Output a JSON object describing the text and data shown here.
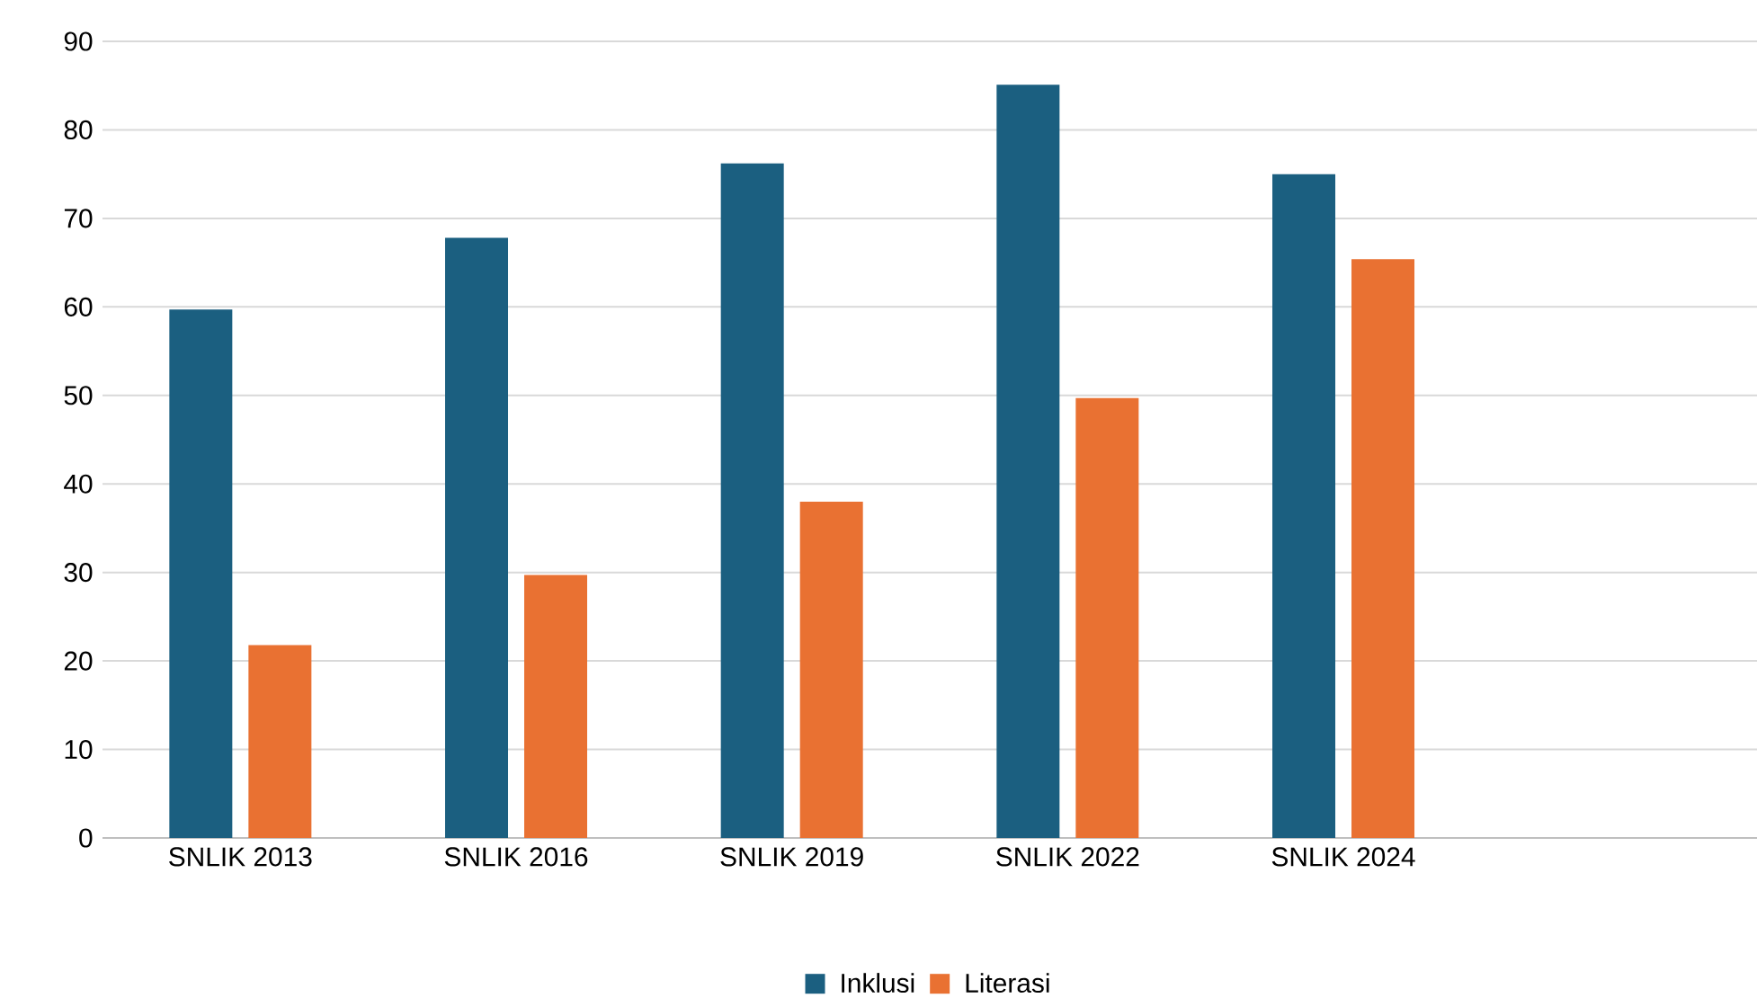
{
  "chart_data": {
    "type": "bar",
    "categories": [
      "SNLIK 2013",
      "SNLIK 2016",
      "SNLIK 2019",
      "SNLIK 2022",
      "SNLIK 2024",
      null
    ],
    "series": [
      {
        "name": "Inklusi",
        "color": "#1b5f80",
        "values": [
          59.7,
          67.8,
          76.2,
          85.1,
          75.0,
          null
        ]
      },
      {
        "name": "Literasi",
        "color": "#e97132",
        "values": [
          21.8,
          29.7,
          38.0,
          49.7,
          65.4,
          null
        ]
      }
    ],
    "ylim": [
      0,
      90
    ],
    "yticks": [
      0,
      10,
      20,
      30,
      40,
      50,
      60,
      70,
      80,
      90
    ],
    "grid": "y",
    "legend": "bottom"
  }
}
